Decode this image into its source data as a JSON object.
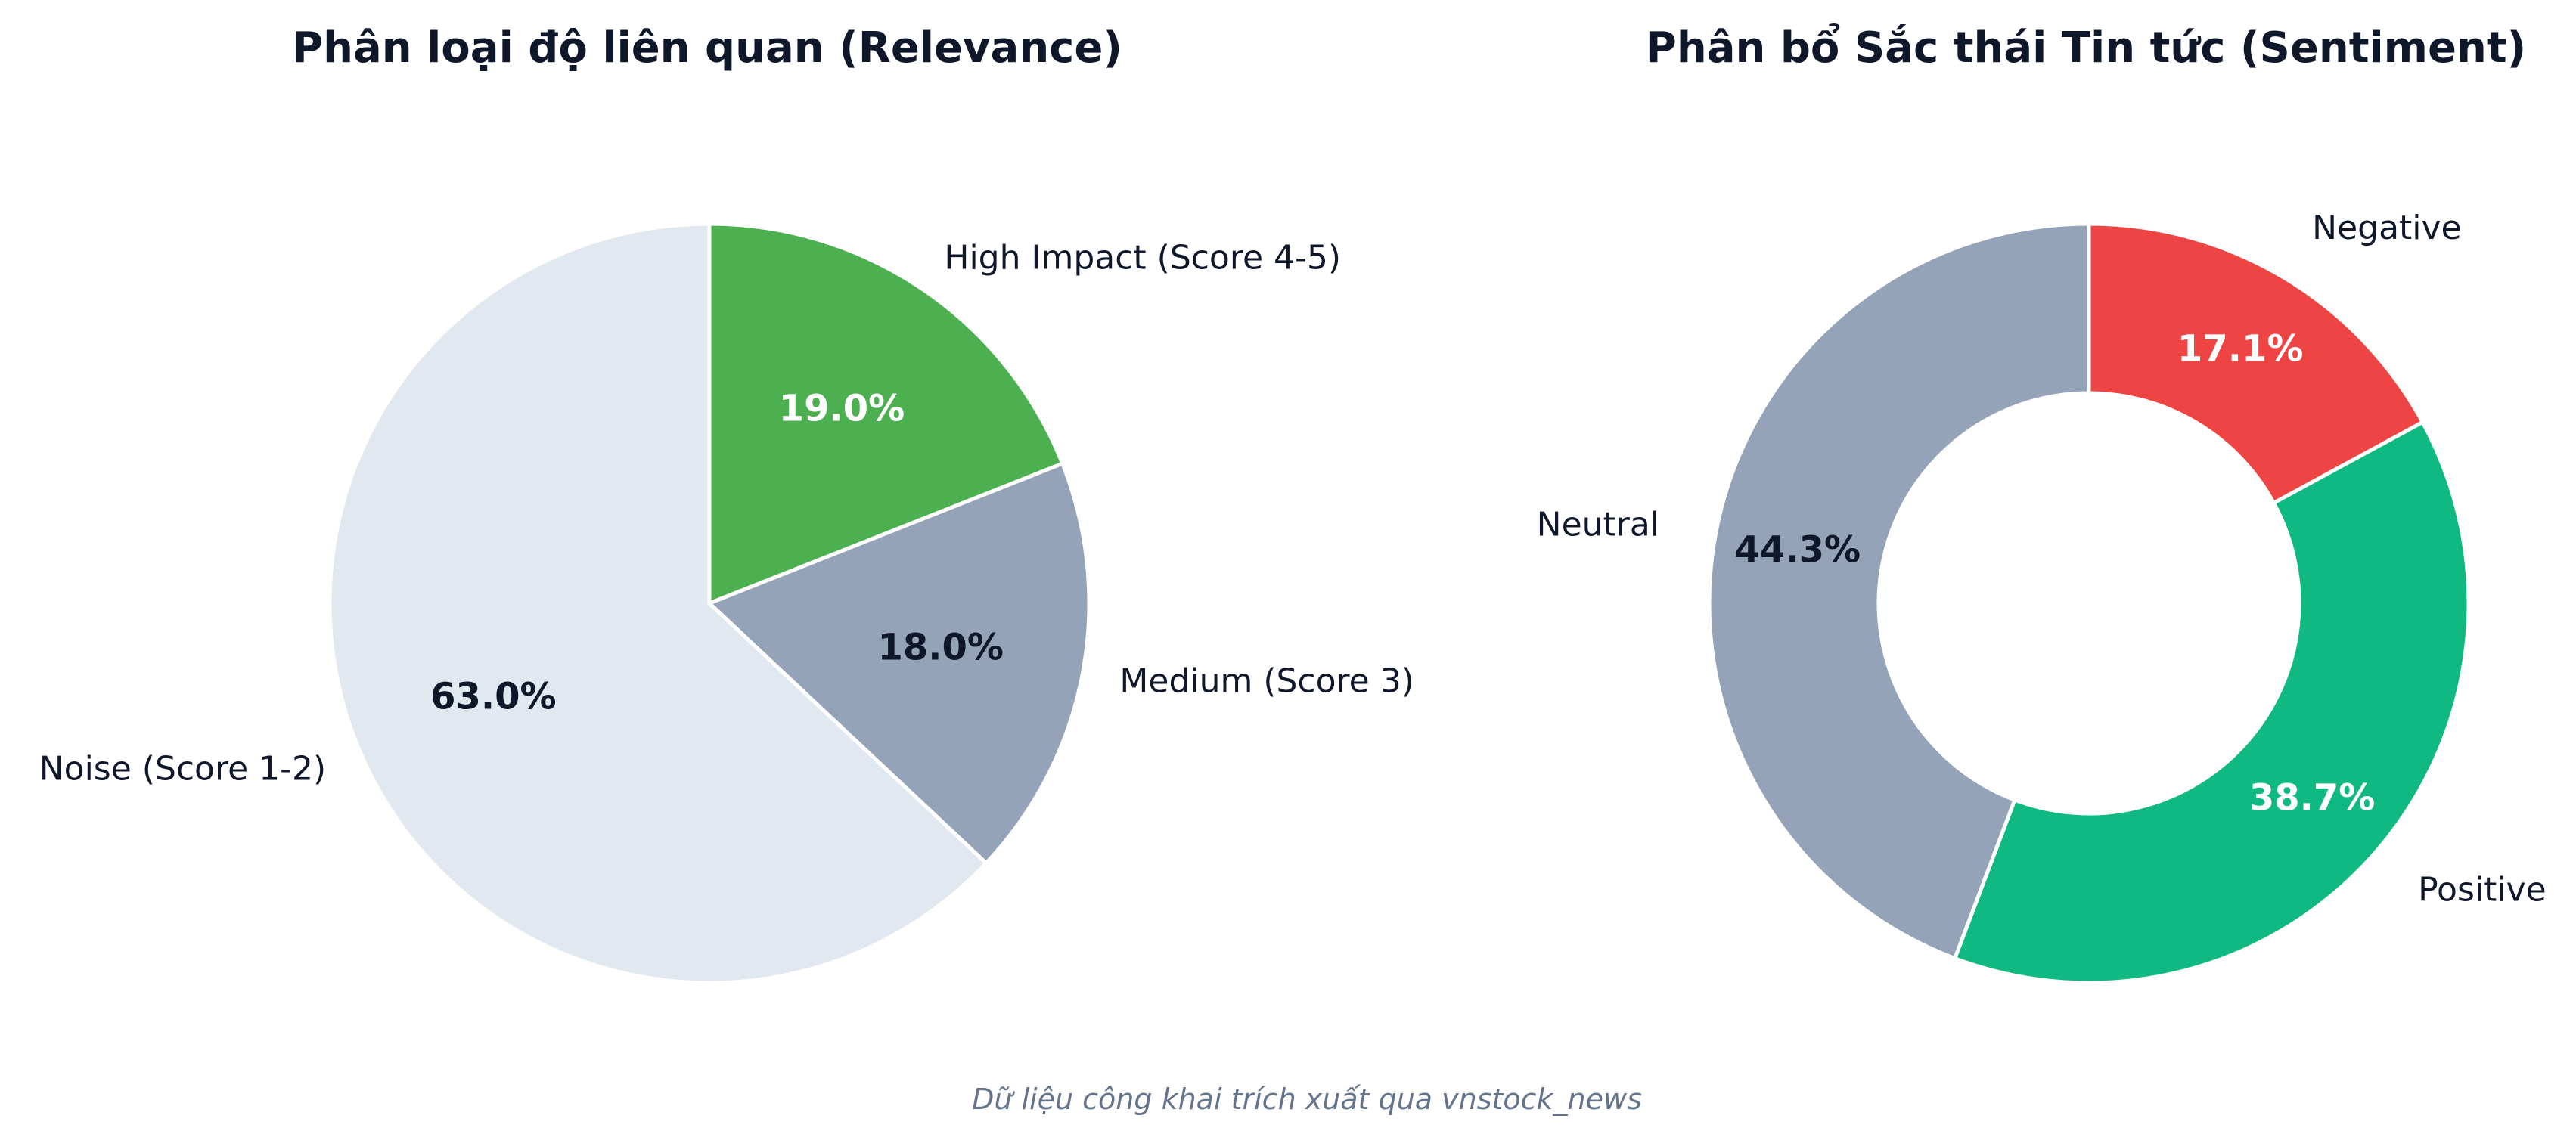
{
  "footer": "Dữ liệu công khai trích xuất qua vnstock_news",
  "chart_data": [
    {
      "type": "pie",
      "title": "Phân loại độ liên quan (Relevance)",
      "categories": [
        "High Impact (Score 4-5)",
        "Medium (Score 3)",
        "Noise (Score 1-2)"
      ],
      "values": [
        19.0,
        18.0,
        63.0
      ],
      "value_labels": [
        "19.0%",
        "18.0%",
        "63.0%"
      ],
      "colors": [
        "#4caf50",
        "#94a3b8",
        "#e2e8f0"
      ],
      "value_label_colors": [
        "#ffffff",
        "#0f172a",
        "#0f172a"
      ],
      "donut": false,
      "start_angle": "top, clockwise"
    },
    {
      "type": "pie",
      "title": "Phân bổ Sắc thái Tin tức (Sentiment)",
      "categories": [
        "Negative",
        "Positive",
        "Neutral"
      ],
      "values": [
        17.1,
        38.7,
        44.3
      ],
      "value_labels": [
        "17.1%",
        "38.7%",
        "44.3%"
      ],
      "colors": [
        "#ef4444",
        "#10b981",
        "#94a3b8"
      ],
      "value_label_colors": [
        "#ffffff",
        "#ffffff",
        "#0f172a"
      ],
      "donut": true,
      "start_angle": "top, clockwise"
    }
  ]
}
